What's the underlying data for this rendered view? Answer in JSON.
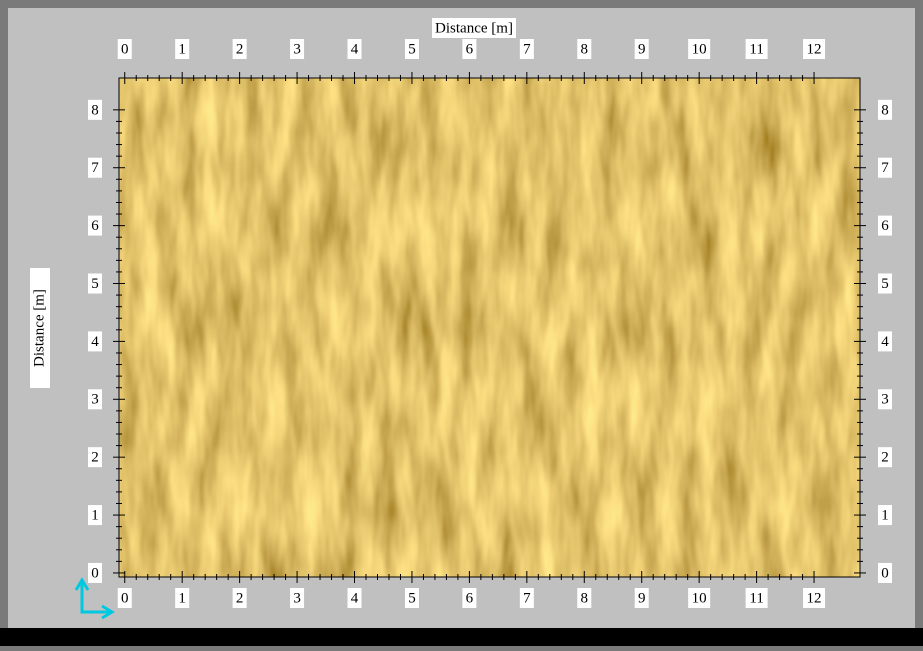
{
  "chart_data": {
    "type": "map",
    "title": "Distance [m]",
    "ylabel": "Distance [m]",
    "xlim": [
      -0.1,
      12.8
    ],
    "ylim": [
      -0.07,
      8.55
    ],
    "xticks": [
      0,
      1,
      2,
      3,
      4,
      5,
      6,
      7,
      8,
      9,
      10,
      11,
      12
    ],
    "yticks": [
      0,
      1,
      2,
      3,
      4,
      5,
      6,
      7,
      8
    ]
  }
}
